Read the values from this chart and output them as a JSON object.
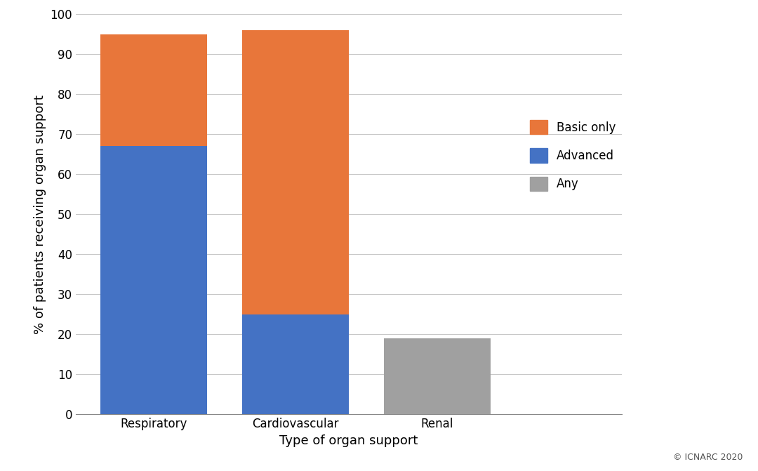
{
  "categories": [
    "Respiratory",
    "Cardiovascular",
    "Renal"
  ],
  "advanced": [
    67,
    25,
    0
  ],
  "basic_only": [
    28,
    71,
    0
  ],
  "any": [
    0,
    0,
    19
  ],
  "colors": {
    "basic_only": "#E8763A",
    "advanced": "#4472C4",
    "any": "#A0A0A0"
  },
  "ylabel": "% of patients receiving organ support",
  "xlabel": "Type of organ support",
  "ylim": [
    0,
    100
  ],
  "yticks": [
    0,
    10,
    20,
    30,
    40,
    50,
    60,
    70,
    80,
    90,
    100
  ],
  "legend_labels": [
    "Basic only",
    "Advanced",
    "Any"
  ],
  "background_color": "#FFFFFF",
  "grid_color": "#C8C8C8",
  "bar_width": 0.75,
  "axis_fontsize": 13,
  "tick_fontsize": 12,
  "legend_fontsize": 12
}
